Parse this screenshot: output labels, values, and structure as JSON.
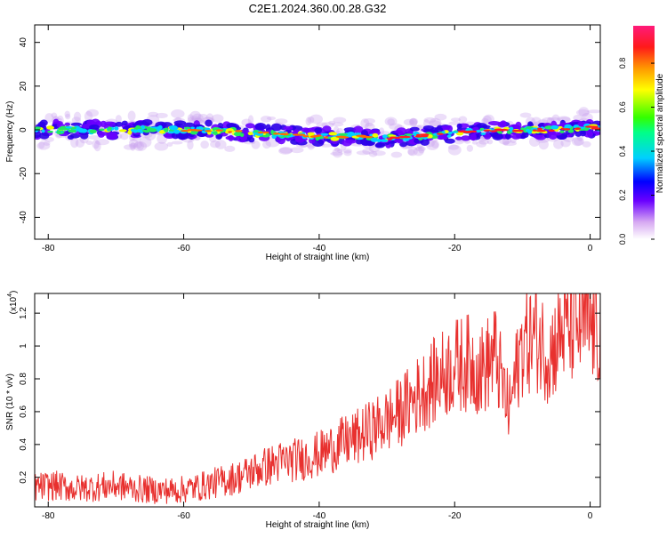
{
  "title": "C2E1.2024.360.00.28.G32",
  "chart_data": [
    {
      "type": "heatmap",
      "xlabel": "Height of straight line (km)",
      "ylabel": "Frequency (Hz)",
      "xlim": [
        -82,
        1.5
      ],
      "ylim": [
        -50,
        48
      ],
      "xticks": [
        -80,
        -60,
        -40,
        -20,
        0
      ],
      "yticks": [
        -40,
        -20,
        0,
        20,
        40
      ],
      "colorbar": {
        "label": "Normalized spectral amplitude",
        "range": [
          0,
          0.97
        ],
        "ticks": [
          0.0,
          0.2,
          0.4,
          0.6,
          0.8
        ]
      },
      "ridge": {
        "x": [
          -82,
          -76,
          -70,
          -64,
          -58,
          -52,
          -46,
          -40,
          -34,
          -30,
          -26,
          -22,
          -18,
          -12,
          -6,
          0,
          1.5
        ],
        "frequency": [
          0,
          0,
          0,
          0,
          0,
          -1,
          -2,
          -3,
          -3,
          -4,
          -3,
          -2,
          -1,
          0,
          0,
          1,
          1
        ]
      }
    },
    {
      "type": "line",
      "xlabel": "Height of straight line (km)",
      "ylabel": "SNR (10 * v/v)",
      "yscale_label": "(x10",
      "yscale_exp": "4",
      "xlim": [
        -82,
        1.5
      ],
      "ylim": [
        0.02,
        1.32
      ],
      "xticks": [
        -80,
        -60,
        -40,
        -20,
        0
      ],
      "yticks": [
        0.2,
        0.4,
        0.6,
        0.8,
        1.0,
        1.2
      ],
      "series": [
        {
          "color": "#e8302e",
          "x": [
            -82,
            -79,
            -76,
            -73,
            -70,
            -67,
            -64,
            -61,
            -58,
            -55,
            -52,
            -49,
            -46,
            -43,
            -40,
            -37,
            -34,
            -31,
            -28,
            -26,
            -24,
            -22,
            -20,
            -18,
            -16,
            -14,
            -12,
            -10,
            -8,
            -6,
            -4,
            -2,
            0,
            1.5
          ],
          "values": [
            0.14,
            0.15,
            0.13,
            0.14,
            0.15,
            0.13,
            0.12,
            0.12,
            0.14,
            0.17,
            0.2,
            0.25,
            0.29,
            0.31,
            0.34,
            0.4,
            0.45,
            0.52,
            0.6,
            0.68,
            0.75,
            0.82,
            0.88,
            0.9,
            0.85,
            0.95,
            0.6,
            1.02,
            1.06,
            0.95,
            1.1,
            1.12,
            1.12,
            1.08
          ]
        }
      ]
    }
  ]
}
